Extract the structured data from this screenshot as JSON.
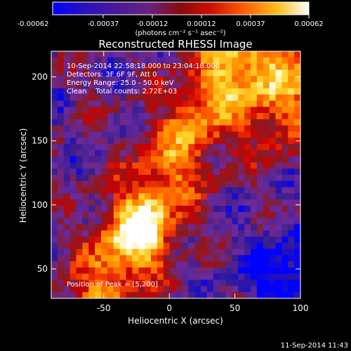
{
  "chart_data": {
    "type": "heatmap",
    "title": "Reconstructed RHESSI Image",
    "xlabel": "Heliocentric X (arcsec)",
    "ylabel": "Heliocentric Y (arcsec)",
    "xlim": [
      -90,
      100
    ],
    "ylim": [
      27,
      220
    ],
    "xticks": [
      -50,
      0,
      50,
      100
    ],
    "yticks": [
      50,
      100,
      150,
      200
    ],
    "colorbar": {
      "ticks": [
        "-0.00062",
        "-0.00037",
        "-0.00012",
        "0.00012",
        "0.00037",
        "0.00062"
      ],
      "units": "(photons cm⁻² s⁻¹ asec⁻²)",
      "min": -0.00062,
      "max": 0.00062
    },
    "annotations": [
      "10-Sep-2014 22:58:18.000 to 23:04:18.000",
      "Detectors: 3F 6F 9F, Att 0",
      "Energy Range: 25.0 - 50.0 keV",
      "Clean    Total counts: 2.72E+03"
    ],
    "peak_label": "Position of Peak = [5,200]",
    "colors": {
      "stops": [
        "#0000ff",
        "#3a1e8c",
        "#6a2aa0",
        "#8a1a20",
        "#cc0000",
        "#ff5500",
        "#ff9900",
        "#ffdd33",
        "#ffffff"
      ]
    }
  },
  "footer": {
    "timestamp": "11-Sep-2014 11:43"
  }
}
